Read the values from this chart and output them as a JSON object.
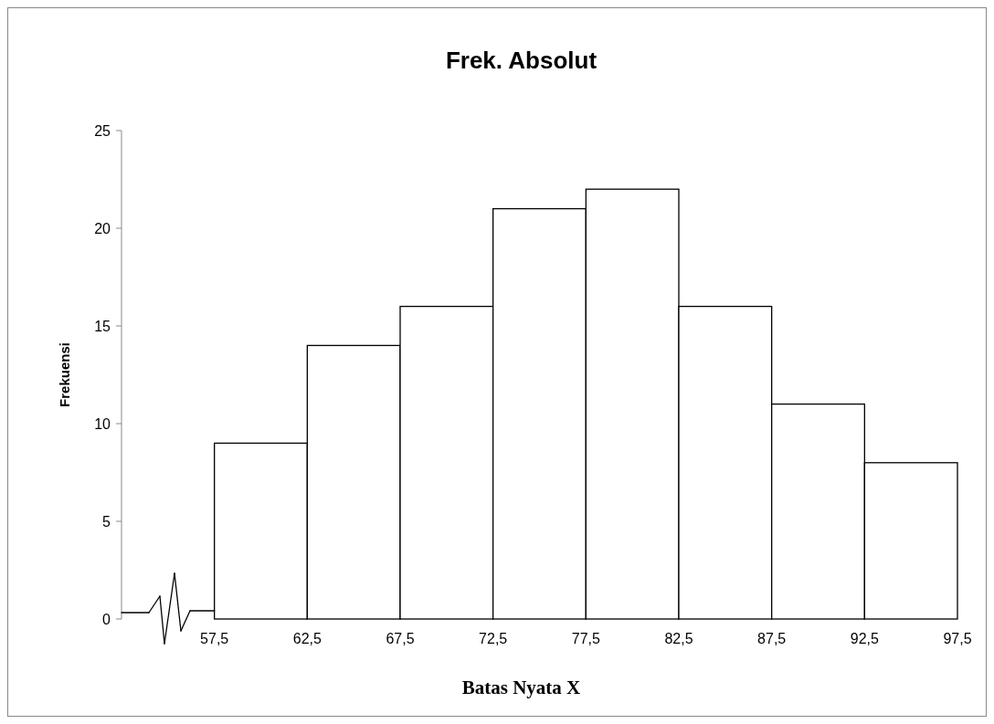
{
  "chart_data": {
    "type": "histogram",
    "title": "Frek. Absolut",
    "xlabel": "Batas Nyata X",
    "ylabel": "Frekuensi",
    "bins": [
      57.5,
      62.5,
      67.5,
      72.5,
      77.5,
      82.5,
      87.5,
      92.5,
      97.5
    ],
    "values": [
      9,
      14,
      16,
      21,
      22,
      16,
      11,
      8
    ],
    "color": "#ffffff",
    "xlim": [
      52.5,
      97.5
    ],
    "xticks": [
      {
        "value": 57.5,
        "label": "57,5"
      },
      {
        "value": 62.5,
        "label": "62,5"
      },
      {
        "value": 67.5,
        "label": "67,5"
      },
      {
        "value": 72.5,
        "label": "72,5"
      },
      {
        "value": 77.5,
        "label": "77,5"
      },
      {
        "value": 82.5,
        "label": "82,5"
      },
      {
        "value": 87.5,
        "label": "87,5"
      },
      {
        "value": 92.5,
        "label": "92,5"
      },
      {
        "value": 97.5,
        "label": "97,5"
      }
    ],
    "ylim": [
      0,
      25
    ],
    "yticks": [
      0,
      5,
      10,
      15,
      20,
      25
    ],
    "grid": false
  }
}
